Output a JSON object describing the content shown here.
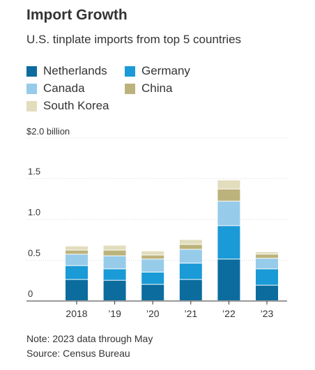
{
  "title": "Import Growth",
  "subtitle": "U.S. tinplate imports from top 5 countries",
  "y_unit_label": "$2.0 billion",
  "note": "Note: 2023 data through May",
  "source": "Source: Census Bureau",
  "chart_data": {
    "type": "bar",
    "stacked": true,
    "categories": [
      "2018",
      "’19",
      "’20",
      "’21",
      "’22",
      "’23"
    ],
    "ylim": [
      0,
      2.0
    ],
    "yticks": [
      {
        "value": 0,
        "label": "0"
      },
      {
        "value": 0.5,
        "label": "0.5"
      },
      {
        "value": 1.0,
        "label": "1.0"
      },
      {
        "value": 1.5,
        "label": "1.5"
      },
      {
        "value": 2.0,
        "label": ""
      }
    ],
    "grid": true,
    "legend_position": "top-left",
    "series": [
      {
        "name": "Netherlands",
        "color": "#0c6c9e",
        "values": [
          0.26,
          0.25,
          0.2,
          0.26,
          0.51,
          0.19
        ]
      },
      {
        "name": "Germany",
        "color": "#1a9ad6",
        "values": [
          0.17,
          0.14,
          0.15,
          0.2,
          0.41,
          0.2
        ]
      },
      {
        "name": "Canada",
        "color": "#97cbea",
        "values": [
          0.14,
          0.16,
          0.16,
          0.17,
          0.3,
          0.13
        ]
      },
      {
        "name": "China",
        "color": "#bcb37c",
        "values": [
          0.05,
          0.07,
          0.05,
          0.06,
          0.15,
          0.05
        ]
      },
      {
        "name": "South Korea",
        "color": "#e1ddbd",
        "values": [
          0.05,
          0.06,
          0.05,
          0.06,
          0.11,
          0.03
        ]
      }
    ]
  }
}
